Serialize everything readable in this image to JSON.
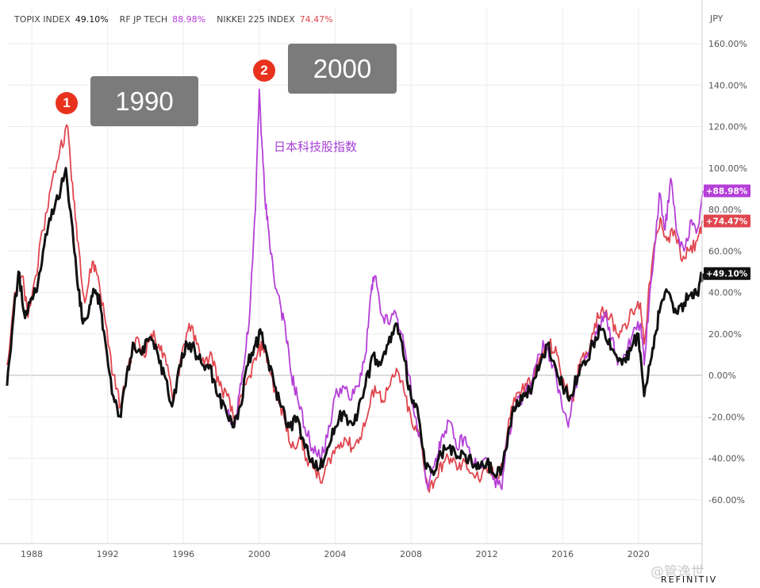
{
  "currency_label": "JPY",
  "legend": [
    {
      "name": "TOPIX INDEX",
      "value": "49.10%",
      "color": "#111111"
    },
    {
      "name": "RF JP TECH",
      "value": "88.98%",
      "color": "#b53fd8"
    },
    {
      "name": "NIKKEI 225 INDEX",
      "value": "74.47%",
      "color": "#e0464f"
    }
  ],
  "callouts": [
    {
      "number": "1",
      "label": "1990"
    },
    {
      "number": "2",
      "label": "2000"
    }
  ],
  "annotation": "日本科技股指数",
  "watermark": "@管逸世",
  "source": "REFINITIV",
  "chart_data": {
    "type": "line",
    "title": "",
    "xlabel": "",
    "ylabel": "",
    "y_unit": "%",
    "x_ticks": [
      "1988",
      "1992",
      "1996",
      "2000",
      "2004",
      "2008",
      "2012",
      "2016",
      "2020"
    ],
    "y_ticks": [
      "160.00%",
      "140.00%",
      "120.00%",
      "100.00%",
      "80.00%",
      "60.00%",
      "40.00%",
      "20.00%",
      "0.00%",
      "-20.00%",
      "-40.00%",
      "-60.00%"
    ],
    "xlim": [
      1986.6,
      2023.6
    ],
    "ylim": [
      -80,
      170
    ],
    "grid": true,
    "legend_position": "top-left",
    "series": [
      {
        "name": "NIKKEI 225 INDEX",
        "color": "#e0464f",
        "end_label": "+74.47%",
        "points": [
          [
            1986.7,
            5
          ],
          [
            1987.1,
            40
          ],
          [
            1987.5,
            48
          ],
          [
            1987.8,
            28
          ],
          [
            1988.2,
            48
          ],
          [
            1988.6,
            70
          ],
          [
            1989.0,
            90
          ],
          [
            1989.5,
            110
          ],
          [
            1989.9,
            120
          ],
          [
            1990.2,
            85
          ],
          [
            1990.5,
            60
          ],
          [
            1990.8,
            35
          ],
          [
            1991.2,
            55
          ],
          [
            1991.5,
            48
          ],
          [
            1991.9,
            25
          ],
          [
            1992.3,
            0
          ],
          [
            1992.7,
            -15
          ],
          [
            1993.1,
            5
          ],
          [
            1993.5,
            18
          ],
          [
            1993.9,
            10
          ],
          [
            1994.3,
            20
          ],
          [
            1994.7,
            15
          ],
          [
            1995.1,
            5
          ],
          [
            1995.5,
            -12
          ],
          [
            1995.9,
            10
          ],
          [
            1996.3,
            25
          ],
          [
            1996.7,
            15
          ],
          [
            1997.1,
            5
          ],
          [
            1997.5,
            10
          ],
          [
            1997.9,
            -5
          ],
          [
            1998.3,
            -10
          ],
          [
            1998.7,
            -22
          ],
          [
            1999.1,
            -10
          ],
          [
            1999.5,
            0
          ],
          [
            1999.9,
            10
          ],
          [
            2000.2,
            15
          ],
          [
            2000.5,
            5
          ],
          [
            2000.9,
            -10
          ],
          [
            2001.3,
            -20
          ],
          [
            2001.7,
            -35
          ],
          [
            2002.1,
            -30
          ],
          [
            2002.5,
            -40
          ],
          [
            2002.9,
            -45
          ],
          [
            2003.3,
            -52
          ],
          [
            2003.7,
            -40
          ],
          [
            2004.1,
            -35
          ],
          [
            2004.5,
            -30
          ],
          [
            2004.9,
            -35
          ],
          [
            2005.3,
            -30
          ],
          [
            2005.7,
            -20
          ],
          [
            2006.1,
            -5
          ],
          [
            2006.5,
            -12
          ],
          [
            2006.9,
            -5
          ],
          [
            2007.3,
            2
          ],
          [
            2007.7,
            -10
          ],
          [
            2008.1,
            -25
          ],
          [
            2008.5,
            -30
          ],
          [
            2008.9,
            -55
          ],
          [
            2009.3,
            -50
          ],
          [
            2009.7,
            -42
          ],
          [
            2010.1,
            -40
          ],
          [
            2010.5,
            -45
          ],
          [
            2010.9,
            -42
          ],
          [
            2011.3,
            -48
          ],
          [
            2011.7,
            -50
          ],
          [
            2012.1,
            -45
          ],
          [
            2012.5,
            -50
          ],
          [
            2012.9,
            -40
          ],
          [
            2013.3,
            -15
          ],
          [
            2013.7,
            -8
          ],
          [
            2014.1,
            -5
          ],
          [
            2014.5,
            0
          ],
          [
            2014.9,
            10
          ],
          [
            2015.3,
            15
          ],
          [
            2015.7,
            10
          ],
          [
            2016.1,
            -5
          ],
          [
            2016.5,
            -12
          ],
          [
            2016.9,
            5
          ],
          [
            2017.3,
            10
          ],
          [
            2017.7,
            25
          ],
          [
            2018.1,
            33
          ],
          [
            2018.5,
            28
          ],
          [
            2018.9,
            20
          ],
          [
            2019.3,
            25
          ],
          [
            2019.7,
            30
          ],
          [
            2020.1,
            35
          ],
          [
            2020.3,
            15
          ],
          [
            2020.6,
            45
          ],
          [
            2020.9,
            65
          ],
          [
            2021.2,
            75
          ],
          [
            2021.5,
            65
          ],
          [
            2021.9,
            70
          ],
          [
            2022.3,
            55
          ],
          [
            2022.7,
            60
          ],
          [
            2023.1,
            65
          ],
          [
            2023.4,
            74.47
          ]
        ]
      },
      {
        "name": "RF JP TECH",
        "color": "#b53fd8",
        "end_label": "+88.98%",
        "points": [
          [
            1998.3,
            -18
          ],
          [
            1998.7,
            -25
          ],
          [
            1998.9,
            -10
          ],
          [
            1999.2,
            5
          ],
          [
            1999.5,
            30
          ],
          [
            1999.8,
            80
          ],
          [
            2000.0,
            138
          ],
          [
            2000.15,
            110
          ],
          [
            2000.3,
            85
          ],
          [
            2000.5,
            70
          ],
          [
            2000.8,
            45
          ],
          [
            2001.1,
            35
          ],
          [
            2001.4,
            20
          ],
          [
            2001.7,
            0
          ],
          [
            2002.0,
            -10
          ],
          [
            2002.4,
            -25
          ],
          [
            2002.8,
            -35
          ],
          [
            2003.2,
            -40
          ],
          [
            2003.6,
            -30
          ],
          [
            2004.0,
            -10
          ],
          [
            2004.4,
            -5
          ],
          [
            2004.8,
            -12
          ],
          [
            2005.2,
            -5
          ],
          [
            2005.6,
            10
          ],
          [
            2005.9,
            40
          ],
          [
            2006.1,
            48
          ],
          [
            2006.4,
            30
          ],
          [
            2006.8,
            25
          ],
          [
            2007.2,
            30
          ],
          [
            2007.5,
            20
          ],
          [
            2007.9,
            0
          ],
          [
            2008.2,
            -20
          ],
          [
            2008.6,
            -35
          ],
          [
            2008.9,
            -55
          ],
          [
            2009.3,
            -40
          ],
          [
            2009.6,
            -30
          ],
          [
            2010.0,
            -22
          ],
          [
            2010.4,
            -35
          ],
          [
            2010.8,
            -30
          ],
          [
            2011.2,
            -40
          ],
          [
            2011.6,
            -45
          ],
          [
            2012.0,
            -40
          ],
          [
            2012.4,
            -50
          ],
          [
            2012.8,
            -55
          ],
          [
            2013.1,
            -30
          ],
          [
            2013.5,
            -15
          ],
          [
            2013.9,
            -10
          ],
          [
            2014.3,
            -5
          ],
          [
            2014.7,
            10
          ],
          [
            2015.1,
            15
          ],
          [
            2015.5,
            5
          ],
          [
            2015.9,
            -10
          ],
          [
            2016.3,
            -25
          ],
          [
            2016.6,
            -10
          ],
          [
            2017.0,
            5
          ],
          [
            2017.4,
            10
          ],
          [
            2017.8,
            20
          ],
          [
            2018.2,
            30
          ],
          [
            2018.6,
            18
          ],
          [
            2018.9,
            5
          ],
          [
            2019.3,
            10
          ],
          [
            2019.7,
            20
          ],
          [
            2020.1,
            25
          ],
          [
            2020.3,
            5
          ],
          [
            2020.6,
            40
          ],
          [
            2020.9,
            65
          ],
          [
            2021.1,
            88
          ],
          [
            2021.4,
            70
          ],
          [
            2021.7,
            95
          ],
          [
            2022.0,
            70
          ],
          [
            2022.4,
            60
          ],
          [
            2022.8,
            75
          ],
          [
            2023.1,
            70
          ],
          [
            2023.4,
            88.98
          ]
        ]
      },
      {
        "name": "TOPIX INDEX",
        "color": "#111111",
        "end_label": "+49.10%",
        "points": [
          [
            1986.7,
            -5
          ],
          [
            1987.0,
            25
          ],
          [
            1987.3,
            50
          ],
          [
            1987.6,
            30
          ],
          [
            1987.9,
            35
          ],
          [
            1988.2,
            40
          ],
          [
            1988.6,
            60
          ],
          [
            1989.0,
            75
          ],
          [
            1989.4,
            85
          ],
          [
            1989.8,
            100
          ],
          [
            1990.1,
            75
          ],
          [
            1990.4,
            45
          ],
          [
            1990.7,
            25
          ],
          [
            1991.0,
            30
          ],
          [
            1991.3,
            40
          ],
          [
            1991.6,
            35
          ],
          [
            1991.9,
            15
          ],
          [
            1992.3,
            -10
          ],
          [
            1992.7,
            -20
          ],
          [
            1993.0,
            0
          ],
          [
            1993.4,
            15
          ],
          [
            1993.8,
            10
          ],
          [
            1994.2,
            18
          ],
          [
            1994.6,
            12
          ],
          [
            1995.0,
            0
          ],
          [
            1995.4,
            -15
          ],
          [
            1995.8,
            5
          ],
          [
            1996.2,
            15
          ],
          [
            1996.6,
            12
          ],
          [
            1997.0,
            5
          ],
          [
            1997.4,
            5
          ],
          [
            1997.8,
            -10
          ],
          [
            1998.2,
            -15
          ],
          [
            1998.6,
            -25
          ],
          [
            1999.0,
            -15
          ],
          [
            1999.4,
            5
          ],
          [
            1999.8,
            15
          ],
          [
            2000.1,
            20
          ],
          [
            2000.4,
            10
          ],
          [
            2000.8,
            -5
          ],
          [
            2001.2,
            -15
          ],
          [
            2001.6,
            -25
          ],
          [
            2002.0,
            -20
          ],
          [
            2002.4,
            -35
          ],
          [
            2002.8,
            -40
          ],
          [
            2003.2,
            -45
          ],
          [
            2003.6,
            -35
          ],
          [
            2004.0,
            -25
          ],
          [
            2004.4,
            -18
          ],
          [
            2004.8,
            -22
          ],
          [
            2005.2,
            -18
          ],
          [
            2005.6,
            -5
          ],
          [
            2006.0,
            10
          ],
          [
            2006.4,
            5
          ],
          [
            2006.8,
            15
          ],
          [
            2007.2,
            25
          ],
          [
            2007.6,
            10
          ],
          [
            2008.0,
            -10
          ],
          [
            2008.4,
            -20
          ],
          [
            2008.8,
            -45
          ],
          [
            2009.2,
            -48
          ],
          [
            2009.6,
            -38
          ],
          [
            2010.0,
            -35
          ],
          [
            2010.4,
            -40
          ],
          [
            2010.8,
            -38
          ],
          [
            2011.2,
            -42
          ],
          [
            2011.6,
            -45
          ],
          [
            2012.0,
            -42
          ],
          [
            2012.4,
            -48
          ],
          [
            2012.8,
            -45
          ],
          [
            2013.2,
            -25
          ],
          [
            2013.6,
            -12
          ],
          [
            2014.0,
            -10
          ],
          [
            2014.4,
            -5
          ],
          [
            2014.8,
            5
          ],
          [
            2015.2,
            15
          ],
          [
            2015.6,
            5
          ],
          [
            2016.0,
            -5
          ],
          [
            2016.4,
            -10
          ],
          [
            2016.8,
            0
          ],
          [
            2017.2,
            5
          ],
          [
            2017.6,
            15
          ],
          [
            2018.0,
            22
          ],
          [
            2018.4,
            15
          ],
          [
            2018.8,
            10
          ],
          [
            2019.2,
            8
          ],
          [
            2019.6,
            12
          ],
          [
            2020.0,
            20
          ],
          [
            2020.3,
            -10
          ],
          [
            2020.6,
            5
          ],
          [
            2020.9,
            20
          ],
          [
            2021.2,
            35
          ],
          [
            2021.6,
            40
          ],
          [
            2022.0,
            30
          ],
          [
            2022.4,
            35
          ],
          [
            2022.8,
            40
          ],
          [
            2023.1,
            40
          ],
          [
            2023.4,
            49.1
          ]
        ]
      }
    ]
  }
}
